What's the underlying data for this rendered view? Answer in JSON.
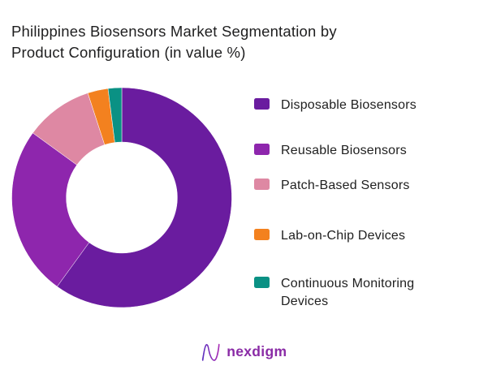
{
  "title_lines": {
    "line1": "Philippines Biosensors Market Segmentation by",
    "line2": "Product Configuration (in value %)"
  },
  "chart_data": {
    "type": "pie",
    "title": "Philippines Biosensors Market Segmentation by Product Configuration (in value %)",
    "donut": true,
    "inner_radius_ratio": 0.505,
    "start_angle_deg": 0,
    "direction": "clockwise",
    "unit": "value %",
    "categories": [
      "Disposable Biosensors",
      "Reusable Biosensors",
      "Patch-Based Sensors",
      "Lab-on-Chip Devices",
      "Continuous Monitoring Devices"
    ],
    "values": [
      60,
      25,
      10,
      3,
      2
    ],
    "colors": [
      "#6A1C9F",
      "#8E26AD",
      "#DE88A3",
      "#F3811F",
      "#0A9184"
    ],
    "legend_position": "right",
    "data_labels_shown": false
  },
  "legend": {
    "items": [
      {
        "label": "Disposable Biosensors",
        "color": "#6A1C9F"
      },
      {
        "label": "Reusable Biosensors",
        "color": "#8E26AD"
      },
      {
        "label": "Patch-Based Sensors",
        "color": "#DE88A3"
      },
      {
        "label": "Lab-on-Chip Devices",
        "color": "#F3811F"
      },
      {
        "label": "Continuous Monitoring Devices",
        "color": "#0A9184"
      }
    ]
  },
  "footer": {
    "brand": "nexdigm",
    "logo_icon": "nexdigm-n-logo",
    "brand_color": "#8A2BA6"
  }
}
